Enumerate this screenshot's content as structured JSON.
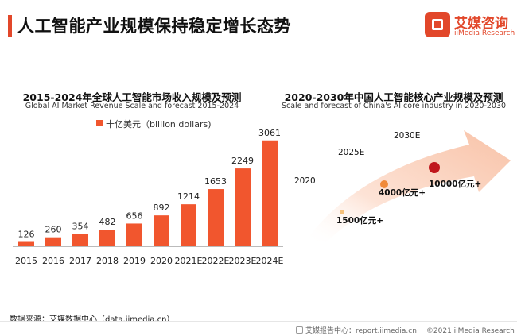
{
  "header": {
    "title": "人工智能产业规模保持稳定增长态势",
    "logo_cn": "艾媒咨询",
    "logo_en": "iiMedia Research"
  },
  "left_chart": {
    "title": "2015-2024年全球人工智能市场收入规模及预测",
    "subtitle": "Global AI Market Revenue Scale and forecast 2015-2024",
    "legend": "十亿美元（billion dollars)"
  },
  "right_chart": {
    "title": "2020-2030年中国人工智能核心产业规模及预测",
    "subtitle": "Scale and forecast of China's AI core industry in 2020-2030",
    "year_2020": "2020",
    "year_2025": "2025E",
    "year_2030": "2030E",
    "value_2020": "1500亿元+",
    "value_2025": "4000亿元+",
    "value_2030": "10000亿元+"
  },
  "chart_data": [
    {
      "type": "bar",
      "title": "2015-2024年全球人工智能市场收入规模及预测",
      "subtitle": "Global AI Market Revenue Scale and forecast 2015-2024",
      "categories": [
        "2015",
        "2016",
        "2017",
        "2018",
        "2019",
        "2020",
        "2021E",
        "2022E",
        "2023E",
        "2024E"
      ],
      "series": [
        {
          "name": "十亿美元（billion dollars)",
          "values": [
            126,
            260,
            354,
            482,
            656,
            892,
            1214,
            1653,
            2249,
            3061
          ]
        }
      ],
      "ylim": [
        0,
        3400
      ],
      "grid": false,
      "legend": "top-left",
      "color": "#f1562e"
    },
    {
      "type": "scatter",
      "title": "2020-2030年中国人工智能核心产业规模及预测",
      "subtitle": "Scale and forecast of China's AI core industry in 2020-2030",
      "categories": [
        "2020",
        "2025E",
        "2030E"
      ],
      "values_label": [
        "1500亿元+",
        "4000亿元+",
        "10000亿元+"
      ],
      "values": [
        1500,
        4000,
        10000
      ],
      "point_colors": [
        "#f5c07a",
        "#f08a3a",
        "#c0161c"
      ]
    }
  ],
  "footer": {
    "source": "数据来源：艾媒数据中心（data.iimedia.cn）",
    "center": "艾媒报告中心：report.iimedia.cn",
    "copyright": "©2021  iiMedia Research  Inc"
  },
  "colors": {
    "accent": "#e2472a",
    "bar": "#f1562e"
  }
}
